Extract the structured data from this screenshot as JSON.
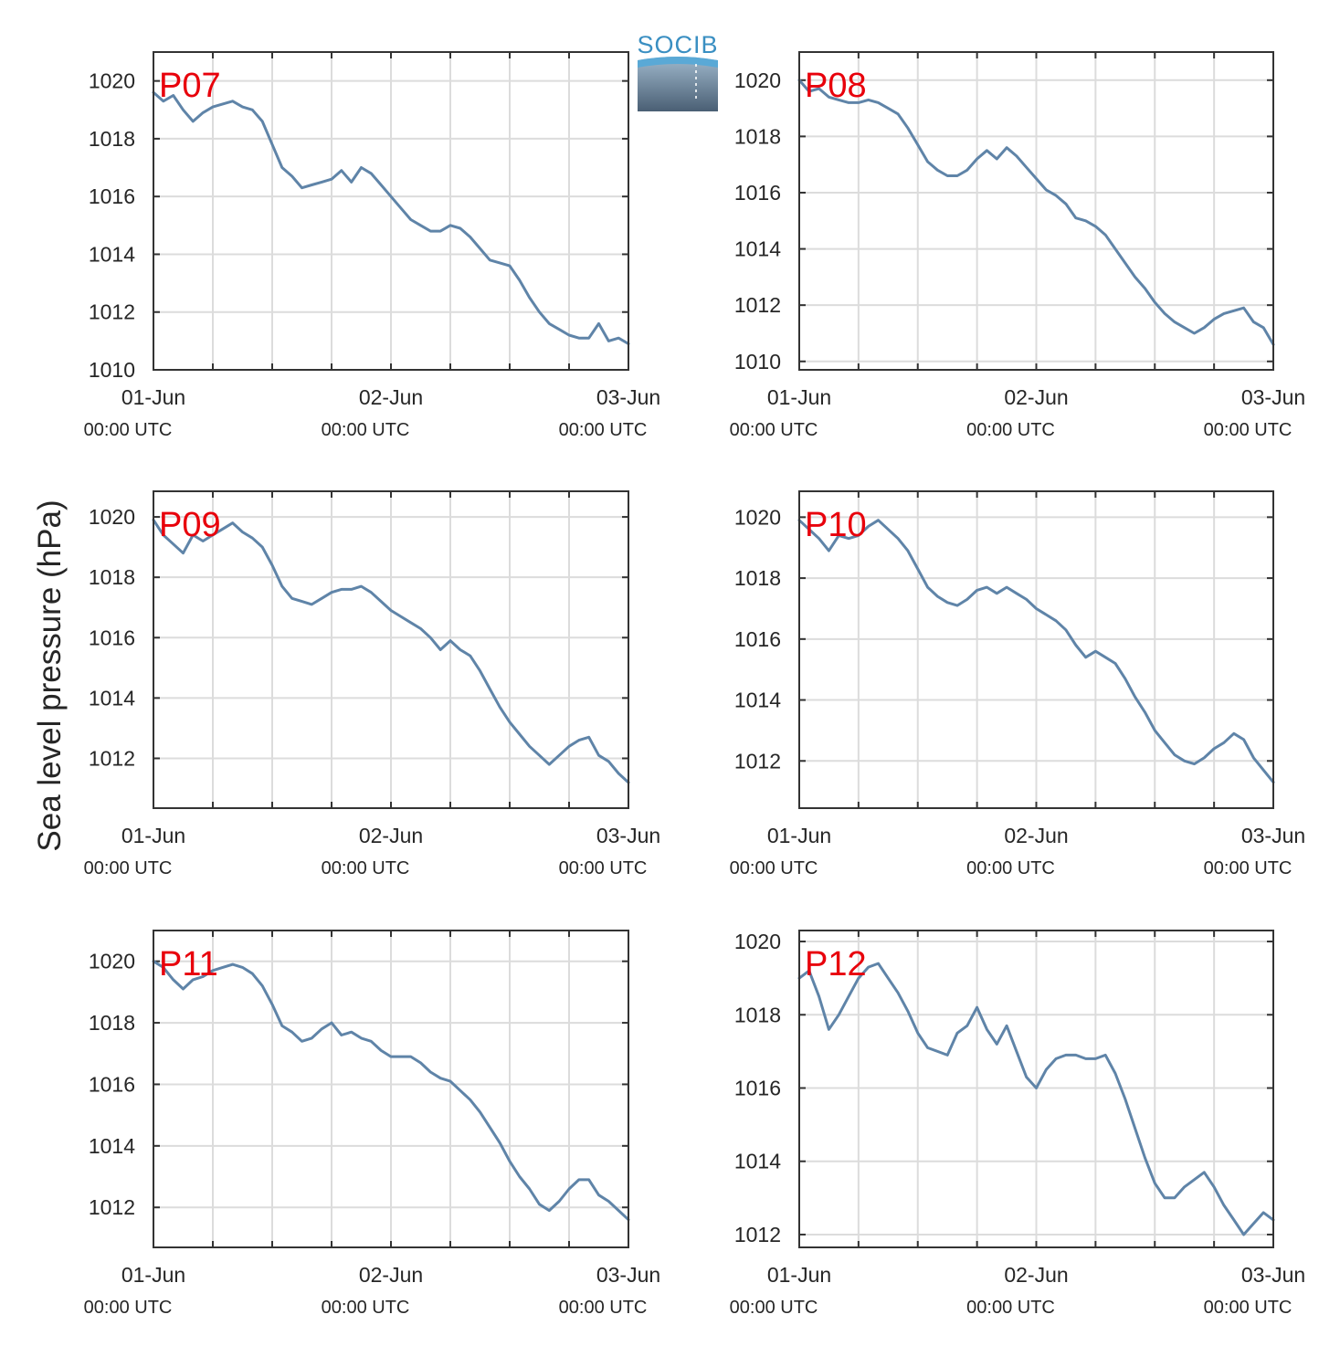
{
  "figure": {
    "ylabel": "Sea level pressure (hPa)",
    "logo_text": "SOCIB"
  },
  "chart_data": [
    {
      "type": "line",
      "station": "P07",
      "ylim": [
        1010,
        1021
      ],
      "yticks": [
        1010,
        1012,
        1014,
        1016,
        1018,
        1020
      ],
      "xlim": [
        0,
        48
      ],
      "xticks": [
        {
          "hour": 0,
          "date": "01-Jun",
          "time": "00:00 UTC"
        },
        {
          "hour": 24,
          "date": "02-Jun",
          "time": "00:00 UTC"
        },
        {
          "hour": 48,
          "date": "03-Jun",
          "time": "00:00 UTC"
        }
      ],
      "grid_hours": [
        6,
        12,
        18,
        30,
        36,
        42
      ],
      "grid": true,
      "series": [
        {
          "x": [
            0,
            1,
            2,
            3,
            4,
            5,
            6,
            7,
            8,
            9,
            10,
            11,
            12,
            13,
            14,
            15,
            16,
            17,
            18,
            19,
            20,
            21,
            22,
            23,
            24,
            25,
            26,
            27,
            28,
            29,
            30,
            31,
            32,
            33,
            34,
            35,
            36,
            37,
            38,
            39,
            40,
            41,
            42,
            43,
            44,
            45,
            46,
            47,
            48
          ],
          "y": [
            1019.6,
            1019.3,
            1019.5,
            1019.0,
            1018.6,
            1018.9,
            1019.1,
            1019.2,
            1019.3,
            1019.1,
            1019.0,
            1018.6,
            1017.8,
            1017.0,
            1016.7,
            1016.3,
            1016.4,
            1016.5,
            1016.6,
            1016.9,
            1016.5,
            1017.0,
            1016.8,
            1016.4,
            1016.0,
            1015.6,
            1015.2,
            1015.0,
            1014.8,
            1014.8,
            1015.0,
            1014.9,
            1014.6,
            1014.2,
            1013.8,
            1013.7,
            1013.6,
            1013.1,
            1012.5,
            1012.0,
            1011.6,
            1011.4,
            1011.2,
            1011.1,
            1011.1,
            1011.6,
            1011.0,
            1011.1,
            1010.9
          ]
        }
      ]
    },
    {
      "type": "line",
      "station": "P08",
      "ylim": [
        1009.7,
        1021.0
      ],
      "yticks": [
        1010,
        1012,
        1014,
        1016,
        1018,
        1020
      ],
      "xlim": [
        0,
        48
      ],
      "xticks": [
        {
          "hour": 0,
          "date": "01-Jun",
          "time": "00:00 UTC"
        },
        {
          "hour": 24,
          "date": "02-Jun",
          "time": "00:00 UTC"
        },
        {
          "hour": 48,
          "date": "03-Jun",
          "time": "00:00 UTC"
        }
      ],
      "grid_hours": [
        6,
        12,
        18,
        30,
        36,
        42
      ],
      "grid": true,
      "series": [
        {
          "x": [
            0,
            1,
            2,
            3,
            4,
            5,
            6,
            7,
            8,
            9,
            10,
            11,
            12,
            13,
            14,
            15,
            16,
            17,
            18,
            19,
            20,
            21,
            22,
            23,
            24,
            25,
            26,
            27,
            28,
            29,
            30,
            31,
            32,
            33,
            34,
            35,
            36,
            37,
            38,
            39,
            40,
            41,
            42,
            43,
            44,
            45,
            46,
            47,
            48
          ],
          "y": [
            1020.0,
            1019.6,
            1019.7,
            1019.4,
            1019.3,
            1019.2,
            1019.2,
            1019.3,
            1019.2,
            1019.0,
            1018.8,
            1018.3,
            1017.7,
            1017.1,
            1016.8,
            1016.6,
            1016.6,
            1016.8,
            1017.2,
            1017.5,
            1017.2,
            1017.6,
            1017.3,
            1016.9,
            1016.5,
            1016.1,
            1015.9,
            1015.6,
            1015.1,
            1015.0,
            1014.8,
            1014.5,
            1014.0,
            1013.5,
            1013.0,
            1012.6,
            1012.1,
            1011.7,
            1011.4,
            1011.2,
            1011.0,
            1011.2,
            1011.5,
            1011.7,
            1011.8,
            1011.9,
            1011.4,
            1011.2,
            1010.6
          ]
        }
      ]
    },
    {
      "type": "line",
      "station": "P09",
      "ylim": [
        1010.35,
        1020.85
      ],
      "yticks": [
        1012,
        1014,
        1016,
        1018,
        1020
      ],
      "xlim": [
        0,
        48
      ],
      "xticks": [
        {
          "hour": 0,
          "date": "01-Jun",
          "time": "00:00 UTC"
        },
        {
          "hour": 24,
          "date": "02-Jun",
          "time": "00:00 UTC"
        },
        {
          "hour": 48,
          "date": "03-Jun",
          "time": "00:00 UTC"
        }
      ],
      "grid_hours": [
        6,
        12,
        18,
        30,
        36,
        42
      ],
      "grid": true,
      "series": [
        {
          "x": [
            0,
            1,
            2,
            3,
            4,
            5,
            6,
            7,
            8,
            9,
            10,
            11,
            12,
            13,
            14,
            15,
            16,
            17,
            18,
            19,
            20,
            21,
            22,
            23,
            24,
            25,
            26,
            27,
            28,
            29,
            30,
            31,
            32,
            33,
            34,
            35,
            36,
            37,
            38,
            39,
            40,
            41,
            42,
            43,
            44,
            45,
            46,
            47,
            48
          ],
          "y": [
            1019.9,
            1019.4,
            1019.1,
            1018.8,
            1019.4,
            1019.2,
            1019.4,
            1019.6,
            1019.8,
            1019.5,
            1019.3,
            1019.0,
            1018.4,
            1017.7,
            1017.3,
            1017.2,
            1017.1,
            1017.3,
            1017.5,
            1017.6,
            1017.6,
            1017.7,
            1017.5,
            1017.2,
            1016.9,
            1016.7,
            1016.5,
            1016.3,
            1016.0,
            1015.6,
            1015.9,
            1015.6,
            1015.4,
            1014.9,
            1014.3,
            1013.7,
            1013.2,
            1012.8,
            1012.4,
            1012.1,
            1011.8,
            1012.1,
            1012.4,
            1012.6,
            1012.7,
            1012.1,
            1011.9,
            1011.5,
            1011.2
          ]
        }
      ]
    },
    {
      "type": "line",
      "station": "P10",
      "ylim": [
        1010.45,
        1020.85
      ],
      "yticks": [
        1012,
        1014,
        1016,
        1018,
        1020
      ],
      "xlim": [
        0,
        48
      ],
      "xticks": [
        {
          "hour": 0,
          "date": "01-Jun",
          "time": "00:00 UTC"
        },
        {
          "hour": 24,
          "date": "02-Jun",
          "time": "00:00 UTC"
        },
        {
          "hour": 48,
          "date": "03-Jun",
          "time": "00:00 UTC"
        }
      ],
      "grid_hours": [
        6,
        12,
        18,
        30,
        36,
        42
      ],
      "grid": true,
      "series": [
        {
          "x": [
            0,
            1,
            2,
            3,
            4,
            5,
            6,
            7,
            8,
            9,
            10,
            11,
            12,
            13,
            14,
            15,
            16,
            17,
            18,
            19,
            20,
            21,
            22,
            23,
            24,
            25,
            26,
            27,
            28,
            29,
            30,
            31,
            32,
            33,
            34,
            35,
            36,
            37,
            38,
            39,
            40,
            41,
            42,
            43,
            44,
            45,
            46,
            47,
            48
          ],
          "y": [
            1019.9,
            1019.6,
            1019.3,
            1018.9,
            1019.4,
            1019.3,
            1019.4,
            1019.7,
            1019.9,
            1019.6,
            1019.3,
            1018.9,
            1018.3,
            1017.7,
            1017.4,
            1017.2,
            1017.1,
            1017.3,
            1017.6,
            1017.7,
            1017.5,
            1017.7,
            1017.5,
            1017.3,
            1017.0,
            1016.8,
            1016.6,
            1016.3,
            1015.8,
            1015.4,
            1015.6,
            1015.4,
            1015.2,
            1014.7,
            1014.1,
            1013.6,
            1013.0,
            1012.6,
            1012.2,
            1012.0,
            1011.9,
            1012.1,
            1012.4,
            1012.6,
            1012.9,
            1012.7,
            1012.1,
            1011.7,
            1011.3
          ]
        }
      ]
    },
    {
      "type": "line",
      "station": "P11",
      "ylim": [
        1010.7,
        1021.0
      ],
      "yticks": [
        1012,
        1014,
        1016,
        1018,
        1020
      ],
      "xlim": [
        0,
        48
      ],
      "xticks": [
        {
          "hour": 0,
          "date": "01-Jun",
          "time": "00:00 UTC"
        },
        {
          "hour": 24,
          "date": "02-Jun",
          "time": "00:00 UTC"
        },
        {
          "hour": 48,
          "date": "03-Jun",
          "time": "00:00 UTC"
        }
      ],
      "grid_hours": [
        6,
        12,
        18,
        30,
        36,
        42
      ],
      "grid": true,
      "series": [
        {
          "x": [
            0,
            1,
            2,
            3,
            4,
            5,
            6,
            7,
            8,
            9,
            10,
            11,
            12,
            13,
            14,
            15,
            16,
            17,
            18,
            19,
            20,
            21,
            22,
            23,
            24,
            25,
            26,
            27,
            28,
            29,
            30,
            31,
            32,
            33,
            34,
            35,
            36,
            37,
            38,
            39,
            40,
            41,
            42,
            43,
            44,
            45,
            46,
            47,
            48
          ],
          "y": [
            1020.0,
            1019.8,
            1019.4,
            1019.1,
            1019.4,
            1019.5,
            1019.7,
            1019.8,
            1019.9,
            1019.8,
            1019.6,
            1019.2,
            1018.6,
            1017.9,
            1017.7,
            1017.4,
            1017.5,
            1017.8,
            1018.0,
            1017.6,
            1017.7,
            1017.5,
            1017.4,
            1017.1,
            1016.9,
            1016.9,
            1016.9,
            1016.7,
            1016.4,
            1016.2,
            1016.1,
            1015.8,
            1015.5,
            1015.1,
            1014.6,
            1014.1,
            1013.5,
            1013.0,
            1012.6,
            1012.1,
            1011.9,
            1012.2,
            1012.6,
            1012.9,
            1012.9,
            1012.4,
            1012.2,
            1011.9,
            1011.6
          ]
        }
      ]
    },
    {
      "type": "line",
      "station": "P12",
      "ylim": [
        1011.65,
        1020.3
      ],
      "yticks": [
        1012,
        1014,
        1016,
        1018,
        1020
      ],
      "xlim": [
        0,
        48
      ],
      "xticks": [
        {
          "hour": 0,
          "date": "01-Jun",
          "time": "00:00 UTC"
        },
        {
          "hour": 24,
          "date": "02-Jun",
          "time": "00:00 UTC"
        },
        {
          "hour": 48,
          "date": "03-Jun",
          "time": "00:00 UTC"
        }
      ],
      "grid_hours": [
        6,
        12,
        18,
        30,
        36,
        42
      ],
      "grid": true,
      "series": [
        {
          "x": [
            0,
            1,
            2,
            3,
            4,
            5,
            6,
            7,
            8,
            9,
            10,
            11,
            12,
            13,
            14,
            15,
            16,
            17,
            18,
            19,
            20,
            21,
            22,
            23,
            24,
            25,
            26,
            27,
            28,
            29,
            30,
            31,
            32,
            33,
            34,
            35,
            36,
            37,
            38,
            39,
            40,
            41,
            42,
            43,
            44,
            45,
            46,
            47,
            48
          ],
          "y": [
            1019.0,
            1019.2,
            1018.5,
            1017.6,
            1018.0,
            1018.5,
            1019.0,
            1019.3,
            1019.4,
            1019.0,
            1018.6,
            1018.1,
            1017.5,
            1017.1,
            1017.0,
            1016.9,
            1017.5,
            1017.7,
            1018.2,
            1017.6,
            1017.2,
            1017.7,
            1017.0,
            1016.3,
            1016.0,
            1016.5,
            1016.8,
            1016.9,
            1016.9,
            1016.8,
            1016.8,
            1016.9,
            1016.4,
            1015.7,
            1014.9,
            1014.1,
            1013.4,
            1013.0,
            1013.0,
            1013.3,
            1013.5,
            1013.7,
            1013.3,
            1012.8,
            1012.4,
            1012.0,
            1012.3,
            1012.6,
            1012.4
          ]
        }
      ]
    }
  ]
}
